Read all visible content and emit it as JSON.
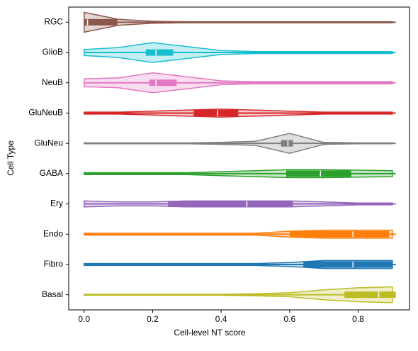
{
  "chart_data": {
    "type": "violin",
    "xlabel": "Cell-level NT score",
    "ylabel": "Cell Type",
    "categories": [
      "RGC",
      "GlioB",
      "NeuB",
      "GluNeuB",
      "GluNeu",
      "GABA",
      "Ery",
      "Endo",
      "Fibro",
      "Basal"
    ],
    "colors": [
      "#8c564b",
      "#17becf",
      "#e377c2",
      "#d62728",
      "#7f7f7f",
      "#2ca02c",
      "#9467bd",
      "#ff7f0e",
      "#1f77b4",
      "#bcbd22"
    ],
    "xlim": [
      -0.045,
      0.95
    ],
    "xticks": [
      {
        "value": 0,
        "label": "0.0"
      },
      0.2,
      0.4,
      0.6,
      0.8
    ],
    "density_grid": [
      0,
      0.1,
      0.2,
      0.3,
      0.4,
      0.5,
      0.6,
      0.7,
      0.8,
      0.9
    ],
    "stats": [
      {
        "min": 0,
        "q1": 0,
        "median": 0.01,
        "q3": 0.097,
        "max": 0.91,
        "density": [
          1,
          0.3,
          0.1,
          0.05,
          0.05,
          0.05,
          0.05,
          0.05,
          0.05,
          0.05
        ]
      },
      {
        "min": 0,
        "q1": 0.18,
        "median": 0.21,
        "q3": 0.26,
        "max": 0.91,
        "density": [
          0.3,
          0.5,
          1,
          0.6,
          0.2,
          0.1,
          0.1,
          0.1,
          0.1,
          0.1
        ]
      },
      {
        "min": 0,
        "q1": 0.19,
        "median": 0.21,
        "q3": 0.27,
        "max": 0.91,
        "density": [
          0.4,
          0.5,
          1,
          0.6,
          0.2,
          0.1,
          0.1,
          0.1,
          0.1,
          0.1
        ]
      },
      {
        "min": 0,
        "q1": 0.32,
        "median": 0.39,
        "q3": 0.45,
        "max": 0.91,
        "density": [
          0.1,
          0.1,
          0.2,
          0.3,
          0.4,
          0.3,
          0.2,
          0.1,
          0.1,
          0.1
        ]
      },
      {
        "min": 0,
        "q1": 0.575,
        "median": 0.595,
        "q3": 0.61,
        "max": 0.91,
        "density": [
          0.05,
          0.05,
          0.05,
          0.05,
          0.1,
          0.2,
          1,
          0.1,
          0.05,
          0.05
        ]
      },
      {
        "min": 0,
        "q1": 0.59,
        "median": 0.69,
        "q3": 0.78,
        "max": 0.91,
        "density": [
          0.1,
          0.1,
          0.1,
          0.1,
          0.2,
          0.3,
          0.4,
          0.4,
          0.35,
          0.3
        ]
      },
      {
        "min": 0,
        "q1": 0.245,
        "median": 0.475,
        "q3": 0.61,
        "max": 0.91,
        "density": [
          0.3,
          0.2,
          0.2,
          0.3,
          0.3,
          0.3,
          0.3,
          0.2,
          0.1,
          0.1
        ]
      },
      {
        "min": 0,
        "q1": 0.6,
        "median": 0.785,
        "q3": 0.89,
        "max": 0.91,
        "density": [
          0.1,
          0.1,
          0.1,
          0.1,
          0.1,
          0.1,
          0.3,
          0.4,
          0.4,
          0.4
        ]
      },
      {
        "min": 0,
        "q1": 0.64,
        "median": 0.785,
        "q3": 0.9,
        "max": 0.91,
        "density": [
          0.1,
          0.1,
          0.1,
          0.1,
          0.1,
          0.1,
          0.2,
          0.4,
          0.4,
          0.4
        ]
      },
      {
        "min": 0,
        "q1": 0.76,
        "median": 0.86,
        "q3": 0.91,
        "max": 0.91,
        "density": [
          0.05,
          0.05,
          0.05,
          0.05,
          0.05,
          0.1,
          0.2,
          0.5,
          0.7,
          0.8
        ]
      }
    ]
  }
}
